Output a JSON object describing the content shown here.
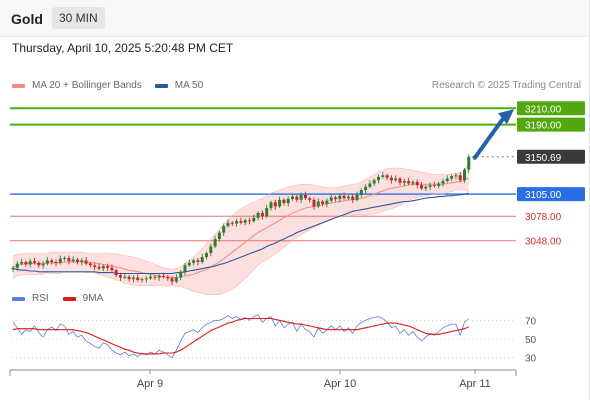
{
  "header": {
    "symbol": "Gold",
    "timeframe": "30 MIN"
  },
  "datetime": "Thursday, April 10, 2025 5:20:48 PM CET",
  "legend": {
    "items": [
      {
        "label": "MA 20 + Bollinger Bands",
        "color": "#f28b82"
      },
      {
        "label": "MA 50",
        "color": "#2c5a9e"
      }
    ]
  },
  "credit": "Research © 2025 Trading Central",
  "rsi_legend": {
    "items": [
      {
        "label": "RSI",
        "color": "#5b7fd6"
      },
      {
        "label": "9MA",
        "color": "#e01818"
      }
    ]
  },
  "colors": {
    "up_candle": "#2e7d32",
    "down_candle": "#c62828",
    "bollinger_fill": "#fbdada",
    "ma20": "#f28b82",
    "ma50": "#2c5a9e",
    "support_line": "#3b78e7",
    "resistance_line": "#4caf0f",
    "minor_support_line": "#e57373",
    "arrow": "#2461a8",
    "rsi": "#5b7fd6",
    "rsi_ma": "#e01818"
  },
  "chart_data": [
    {
      "type": "candlestick",
      "title": "Gold",
      "timeframe": "30 MIN",
      "x_ticks": [
        "Apr 9",
        "Apr 10",
        "Apr 11"
      ],
      "ylim": [
        3000,
        3225
      ],
      "indicators": [
        "MA 20 + Bollinger Bands",
        "MA 50"
      ],
      "levels": [
        {
          "value": 3210.0,
          "label": "3210.00",
          "kind": "resistance"
        },
        {
          "value": 3190.0,
          "label": "3190.00",
          "kind": "resistance"
        },
        {
          "value": 3150.69,
          "label": "3150.69",
          "kind": "last_price"
        },
        {
          "value": 3105.0,
          "label": "3105.00",
          "kind": "pivot"
        },
        {
          "value": 3078.0,
          "label": "3078.00",
          "kind": "support"
        },
        {
          "value": 3048.0,
          "label": "3048.00",
          "kind": "support"
        }
      ],
      "closes": [
        3015,
        3020,
        3022,
        3019,
        3023,
        3021,
        3018,
        3020,
        3024,
        3022,
        3021,
        3026,
        3027,
        3023,
        3025,
        3022,
        3024,
        3020,
        3018,
        3016,
        3014,
        3017,
        3015,
        3012,
        3006,
        3003,
        3004,
        3001,
        3003,
        3000,
        3001,
        3002,
        3004,
        3003,
        3005,
        3004,
        3002,
        2998,
        3003,
        3010,
        3018,
        3021,
        3024,
        3022,
        3028,
        3033,
        3041,
        3050,
        3058,
        3066,
        3070,
        3069,
        3072,
        3070,
        3073,
        3072,
        3076,
        3082,
        3078,
        3088,
        3095,
        3090,
        3098,
        3094,
        3099,
        3102,
        3098,
        3104,
        3100,
        3098,
        3090,
        3096,
        3093,
        3097,
        3101,
        3099,
        3103,
        3100,
        3102,
        3098,
        3104,
        3110,
        3114,
        3118,
        3122,
        3126,
        3128,
        3125,
        3122,
        3124,
        3119,
        3121,
        3118,
        3120,
        3116,
        3112,
        3114,
        3116,
        3115,
        3118,
        3121,
        3124,
        3127,
        3128,
        3122,
        3135,
        3150.69
      ],
      "ma20": [
        3016,
        3018,
        3019,
        3020,
        3020,
        3020,
        3020,
        3020,
        3021,
        3021,
        3021,
        3021,
        3022,
        3022,
        3022,
        3022,
        3022,
        3021,
        3021,
        3021,
        3020,
        3019,
        3018,
        3017,
        3016,
        3015,
        3013,
        3012,
        3011,
        3010,
        3009,
        3008,
        3007,
        3006,
        3005,
        3004,
        3003,
        3003,
        3003,
        3004,
        3005,
        3006,
        3007,
        3009,
        3011,
        3013,
        3016,
        3019,
        3022,
        3026,
        3030,
        3034,
        3038,
        3042,
        3046,
        3050,
        3054,
        3058,
        3061,
        3064,
        3067,
        3070,
        3073,
        3076,
        3079,
        3082,
        3084,
        3086,
        3088,
        3089,
        3090,
        3091,
        3092,
        3093,
        3094,
        3095,
        3096,
        3097,
        3098,
        3098,
        3099,
        3100,
        3101,
        3103,
        3105,
        3107,
        3109,
        3111,
        3112,
        3113,
        3114,
        3115,
        3116,
        3117,
        3117,
        3117,
        3117,
        3117,
        3117,
        3117,
        3117,
        3118,
        3119,
        3120,
        3120,
        3122,
        3125
      ],
      "bb_upper": [
        3030,
        3031,
        3032,
        3033,
        3033,
        3033,
        3033,
        3033,
        3033,
        3034,
        3034,
        3034,
        3034,
        3034,
        3034,
        3034,
        3034,
        3033,
        3033,
        3033,
        3033,
        3033,
        3033,
        3032,
        3032,
        3031,
        3030,
        3029,
        3028,
        3027,
        3025,
        3023,
        3021,
        3019,
        3017,
        3015,
        3014,
        3013,
        3014,
        3016,
        3020,
        3024,
        3028,
        3033,
        3038,
        3044,
        3050,
        3056,
        3062,
        3068,
        3074,
        3079,
        3083,
        3087,
        3090,
        3093,
        3095,
        3098,
        3100,
        3103,
        3106,
        3108,
        3110,
        3112,
        3114,
        3115,
        3116,
        3117,
        3117,
        3117,
        3116,
        3115,
        3114,
        3113,
        3113,
        3113,
        3114,
        3115,
        3116,
        3117,
        3118,
        3120,
        3123,
        3126,
        3129,
        3132,
        3134,
        3136,
        3137,
        3137,
        3137,
        3136,
        3135,
        3134,
        3133,
        3132,
        3131,
        3130,
        3129,
        3129,
        3129,
        3129,
        3130,
        3130,
        3130,
        3134,
        3142
      ],
      "bb_lower": [
        3002,
        3005,
        3006,
        3007,
        3007,
        3007,
        3007,
        3007,
        3009,
        3008,
        3008,
        3008,
        3010,
        3010,
        3010,
        3010,
        3010,
        3009,
        3009,
        3009,
        3007,
        3005,
        3003,
        3002,
        3000,
        2999,
        2996,
        2995,
        2994,
        2993,
        2993,
        2993,
        2993,
        2993,
        2993,
        2993,
        2992,
        2993,
        2992,
        2992,
        2990,
        2988,
        2986,
        2985,
        2984,
        2982,
        2982,
        2982,
        2982,
        2984,
        2986,
        2989,
        2993,
        2997,
        3002,
        3007,
        3013,
        3018,
        3022,
        3025,
        3028,
        3032,
        3036,
        3040,
        3044,
        3049,
        3052,
        3055,
        3059,
        3061,
        3064,
        3067,
        3070,
        3073,
        3075,
        3077,
        3078,
        3079,
        3080,
        3079,
        3080,
        3080,
        3079,
        3080,
        3081,
        3082,
        3084,
        3086,
        3087,
        3089,
        3091,
        3094,
        3097,
        3100,
        3101,
        3102,
        3103,
        3104,
        3105,
        3105,
        3105,
        3107,
        3108,
        3110,
        3110,
        3110,
        3108
      ],
      "ma50": [
        3014,
        3013,
        3012,
        3012,
        3011,
        3011,
        3010,
        3010,
        3010,
        3010,
        3010,
        3010,
        3010,
        3010,
        3010,
        3010,
        3010,
        3010,
        3010,
        3010,
        3009,
        3009,
        3009,
        3009,
        3008,
        3008,
        3008,
        3008,
        3008,
        3008,
        3008,
        3008,
        3008,
        3008,
        3008,
        3008,
        3008,
        3008,
        3009,
        3009,
        3010,
        3011,
        3012,
        3013,
        3014,
        3015,
        3016,
        3017,
        3019,
        3020,
        3022,
        3024,
        3026,
        3028,
        3030,
        3032,
        3034,
        3036,
        3038,
        3041,
        3043,
        3045,
        3048,
        3050,
        3053,
        3055,
        3058,
        3060,
        3062,
        3064,
        3066,
        3068,
        3070,
        3072,
        3074,
        3076,
        3078,
        3080,
        3082,
        3084,
        3085,
        3086,
        3087,
        3088,
        3089,
        3090,
        3091,
        3092,
        3093,
        3094,
        3095,
        3096,
        3096,
        3097,
        3098,
        3099,
        3100,
        3101,
        3101,
        3102,
        3102,
        3103,
        3103,
        3104,
        3104,
        3105,
        3106
      ]
    },
    {
      "type": "line",
      "title": "RSI",
      "series": [
        {
          "name": "RSI",
          "values": [
            68,
            62,
            55,
            60,
            58,
            64,
            57,
            52,
            60,
            63,
            59,
            66,
            64,
            55,
            58,
            52,
            54,
            48,
            45,
            42,
            40,
            46,
            44,
            38,
            35,
            33,
            36,
            32,
            34,
            31,
            35,
            33,
            36,
            34,
            38,
            36,
            33,
            30,
            38,
            48,
            56,
            58,
            60,
            57,
            62,
            66,
            68,
            70,
            70,
            72,
            75,
            72,
            74,
            71,
            73,
            70,
            74,
            76,
            68,
            72,
            74,
            64,
            70,
            62,
            66,
            68,
            58,
            66,
            60,
            58,
            52,
            62,
            56,
            60,
            64,
            60,
            64,
            58,
            62,
            56,
            64,
            68,
            70,
            72,
            73,
            74,
            72,
            68,
            62,
            64,
            56,
            60,
            54,
            58,
            52,
            48,
            52,
            56,
            54,
            58,
            62,
            64,
            66,
            66,
            54,
            68,
            72
          ]
        },
        {
          "name": "9MA",
          "values": [
            60,
            61,
            61,
            61,
            61,
            61,
            60,
            60,
            60,
            60,
            60,
            60,
            60,
            60,
            60,
            59,
            58,
            57,
            55,
            53,
            51,
            49,
            47,
            45,
            43,
            41,
            39,
            38,
            36,
            35,
            34,
            34,
            34,
            34,
            34,
            35,
            35,
            35,
            36,
            38,
            41,
            44,
            47,
            50,
            53,
            56,
            59,
            61,
            63,
            65,
            67,
            68,
            70,
            71,
            72,
            72,
            72,
            72,
            72,
            72,
            72,
            71,
            70,
            69,
            68,
            67,
            66,
            66,
            65,
            64,
            63,
            62,
            61,
            60,
            60,
            60,
            60,
            60,
            60,
            60,
            60,
            61,
            62,
            63,
            64,
            65,
            66,
            67,
            67,
            67,
            66,
            65,
            64,
            62,
            60,
            58,
            56,
            55,
            55,
            55,
            56,
            57,
            58,
            59,
            60,
            61,
            63
          ]
        }
      ],
      "yticks": [
        30,
        50,
        70
      ],
      "ylim": [
        20,
        80
      ],
      "reference_lines": [
        30,
        50,
        70
      ]
    }
  ]
}
